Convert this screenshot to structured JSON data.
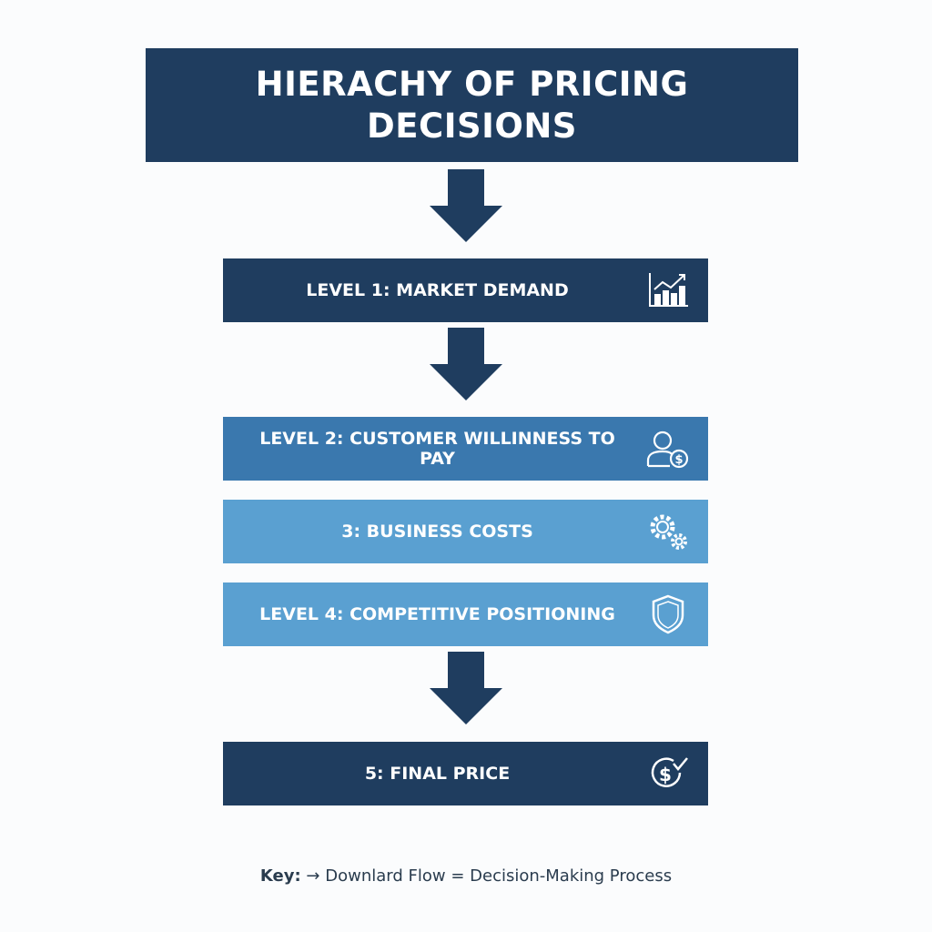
{
  "title": "HIERACHY OF PRICING DECISIONS",
  "levels": [
    {
      "label": "LEVEL 1: MARKET DEMAND",
      "icon": "chart-growth-icon",
      "color": "#1f3d5f"
    },
    {
      "label": "LEVEL 2: CUSTOMER WILLINNESS TO PAY",
      "icon": "user-dollar-icon",
      "color": "#3a78ae"
    },
    {
      "label": "3: BUSINESS COSTS",
      "icon": "gears-icon",
      "color": "#5aa0d1"
    },
    {
      "label": "LEVEL 4: COMPETITIVE POSITIONING",
      "icon": "shield-icon",
      "color": "#5aa0d1"
    },
    {
      "label": "5: FINAL PRICE",
      "icon": "dollar-check-icon",
      "color": "#1f3d5f"
    }
  ],
  "key": {
    "label": "Key:",
    "arrow": "→",
    "text": "Downlard Flow = Decision-Making Process"
  }
}
